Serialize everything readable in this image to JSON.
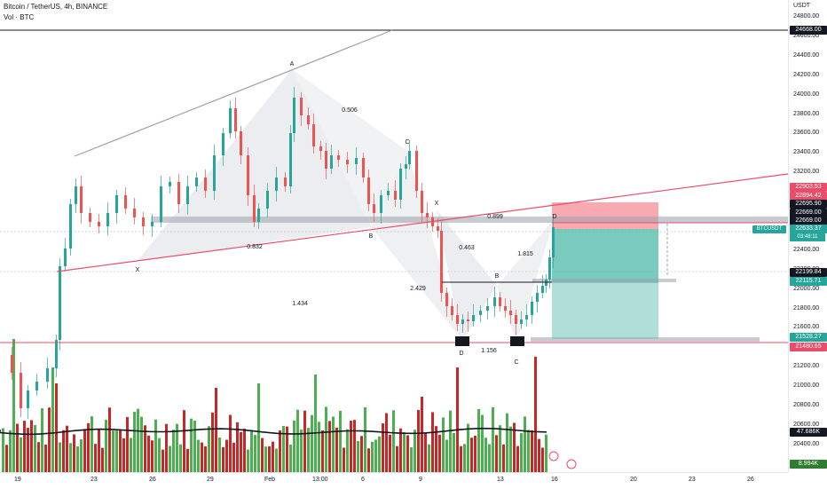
{
  "header": {
    "title": "Bitcoin / TetherUS, 4h, BINANCE",
    "volume_label": "Vol · BTC"
  },
  "price_axis": {
    "currency": "USDT",
    "ticks": [
      "24800.00",
      "24600.00",
      "24400.00",
      "24200.00",
      "24000.00",
      "23800.00",
      "23600.00",
      "23400.00",
      "23200.00",
      "23000.00",
      "22800.00",
      "22600.00",
      "22400.00",
      "22200.00",
      "22000.00",
      "21800.00",
      "21600.00",
      "21400.00",
      "21200.00",
      "21000.00",
      "20800.00",
      "20600.00",
      "20400.00",
      "20200.00"
    ],
    "badges": [
      {
        "label": "24668.00",
        "color": "#131722"
      },
      {
        "label": "22903.53",
        "color": "#e84e6a"
      },
      {
        "label": "22894.42",
        "color": "#e84e6a"
      },
      {
        "label": "22695.90",
        "color": "#131722"
      },
      {
        "label": "22669.00",
        "color": "#131722"
      },
      {
        "label": "22669.00",
        "color": "#131722"
      },
      {
        "label": "22633.37",
        "color": "#26a69a"
      },
      {
        "label": "22199.84",
        "color": "#131722"
      },
      {
        "label": "22115.71",
        "color": "#26a69a"
      },
      {
        "label": "21528.27",
        "color": "#26a69a"
      },
      {
        "label": "21480.65",
        "color": "#e84e6a"
      },
      {
        "label": "47.686K",
        "color": "#131722"
      },
      {
        "label": "8.994K",
        "color": "#2e7d32"
      }
    ],
    "symbol_tag": "BTCUSDT",
    "symbol_price": "22633.37",
    "countdown": "03:48:11"
  },
  "time_axis": {
    "ticks": [
      "19",
      "23",
      "26",
      "29",
      "Feb",
      "13:00",
      "6",
      "9",
      "13",
      "16",
      "20",
      "23",
      "26"
    ]
  },
  "annotations": {
    "point_a": "A",
    "point_x1": "X",
    "point_b1": "B",
    "point_c1": "C",
    "point_d1": "D",
    "fib_0506": "0.506",
    "fib_0832": "0.832",
    "fib_1434": "1.434",
    "point_x2": "X",
    "point_b2": "B",
    "point_c2": "C",
    "point_d2": "D",
    "fib_0899": "0.899",
    "fib_0463": "0.463",
    "fib_2429": "2.429",
    "fib_1815": "1.815",
    "fib_1156": "1.156"
  },
  "colors": {
    "up": "#26a69a",
    "down": "#ef5350",
    "vol_up": "#4caf50",
    "vol_down": "#c62828",
    "trend_red": "#e84e6a",
    "stop_zone": "#f7a1ab",
    "target_zone": "#4fb8a8"
  }
}
